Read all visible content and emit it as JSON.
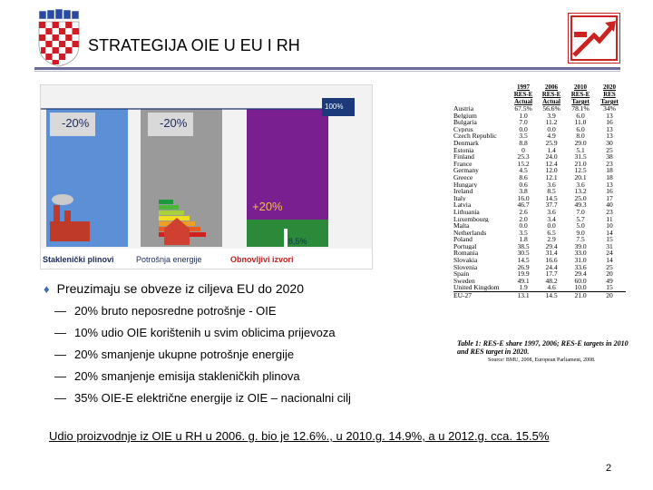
{
  "title": "STRATEGIJA OIE U EU I RH",
  "chart": {
    "line_label": "100%",
    "bars": [
      {
        "label": "-20%",
        "caption": "Staklenički plinovi",
        "color": "#5b8fd6"
      },
      {
        "label": "-20%",
        "caption": "Potrošnja energije",
        "color": "#9a9a9a"
      },
      {
        "label": "+20%",
        "caption": "Obnovljivi izvori",
        "color": "#7a1f90"
      }
    ],
    "small_label": "8,5%"
  },
  "table": {
    "headers": [
      [
        "",
        ""
      ],
      [
        "1997",
        "RES-E",
        "Actual"
      ],
      [
        "2006",
        "RES-E",
        "Actual"
      ],
      [
        "2010",
        "RES-E",
        "Target"
      ],
      [
        "2020",
        "RES",
        "Target"
      ]
    ],
    "rows": [
      [
        "Austria",
        "67.5%",
        "56.6%",
        "78.1%",
        "34%"
      ],
      [
        "Belgium",
        "1.0",
        "3.9",
        "6.0",
        "13"
      ],
      [
        "Bulgaria",
        "7.0",
        "11.2",
        "11.0",
        "16"
      ],
      [
        "Cyprus",
        "0.0",
        "0.0",
        "6.0",
        "13"
      ],
      [
        "Czech Republic",
        "3.5",
        "4.9",
        "8.0",
        "13"
      ],
      [
        "Denmark",
        "8.8",
        "25.9",
        "29.0",
        "30"
      ],
      [
        "Estonia",
        "0",
        "1.4",
        "5.1",
        "25"
      ],
      [
        "Finland",
        "25.3",
        "24.0",
        "31.5",
        "38"
      ],
      [
        "France",
        "15.2",
        "12.4",
        "21.0",
        "23"
      ],
      [
        "Germany",
        "4.5",
        "12.0",
        "12.5",
        "18"
      ],
      [
        "Greece",
        "8.6",
        "12.1",
        "20.1",
        "18"
      ],
      [
        "Hungary",
        "0.6",
        "3.6",
        "3.6",
        "13"
      ],
      [
        "Ireland",
        "3.8",
        "8.5",
        "13.2",
        "16"
      ],
      [
        "Italy",
        "16.0",
        "14.5",
        "25.0",
        "17"
      ],
      [
        "Latvia",
        "46.7",
        "37.7",
        "49.3",
        "40"
      ],
      [
        "Lithuania",
        "2.6",
        "3.6",
        "7.0",
        "23"
      ],
      [
        "Luxembourg",
        "2.0",
        "3.4",
        "5.7",
        "11"
      ],
      [
        "Malta",
        "0.0",
        "0.0",
        "5.0",
        "10"
      ],
      [
        "Netherlands",
        "3.5",
        "6.5",
        "9.0",
        "14"
      ],
      [
        "Poland",
        "1.8",
        "2.9",
        "7.5",
        "15"
      ],
      [
        "Portugal",
        "38.5",
        "29.4",
        "39.0",
        "31"
      ],
      [
        "Romania",
        "30.5",
        "31.4",
        "33.0",
        "24"
      ],
      [
        "Slovakia",
        "14.5",
        "16.6",
        "31.0",
        "14"
      ],
      [
        "Slovenia",
        "26.9",
        "24.4",
        "33.6",
        "25"
      ],
      [
        "Spain",
        "19.9",
        "17.7",
        "29.4",
        "20"
      ],
      [
        "Sweden",
        "49.1",
        "48.2",
        "60.0",
        "49"
      ],
      [
        "United Kingdom",
        "1.9",
        "4.6",
        "10.0",
        "15"
      ],
      [
        "EU-27",
        "13.1",
        "14.5",
        "21.0",
        "20"
      ]
    ],
    "caption": "Table 1: RES-E share 1997, 2006; RES-E targets in 2010 and RES target in 2020.",
    "source": "Source: BMU, 2008, European Parliament, 2008."
  },
  "bullet": "Preuzimaju se obveze iz ciljeva EU do 2020",
  "subitems": [
    "20% bruto neposredne potrošnje - OIE",
    "10% udio OIE korištenih u svim oblicima prijevoza",
    "20% smanjenje ukupne potrošnje energije",
    "20% smanjenje emisija stakleničkih plinova",
    "35% OIE-E električne energije iz OIE – nacionalni cilj"
  ],
  "dash_glyph": "—",
  "footer": "Udio proizvodnje iz OIE u RH u 2006. g. bio je 12.6%., u 2010.g. 14.9%, a u 2012.g. cca. 15.5%",
  "page_number": "2"
}
